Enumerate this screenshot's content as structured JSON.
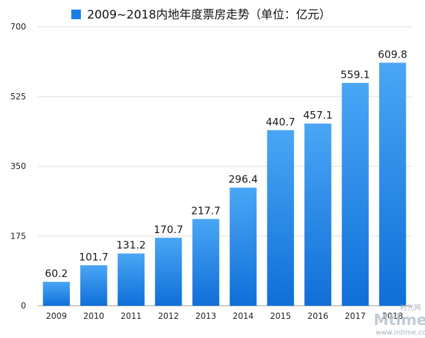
{
  "chart_data": {
    "type": "bar",
    "categories": [
      "2009",
      "2010",
      "2011",
      "2012",
      "2013",
      "2014",
      "2015",
      "2016",
      "2017",
      "2018"
    ],
    "series": [
      {
        "name": "2009~2018内地年度票房走势（单位：亿元）",
        "values": [
          60.2,
          101.7,
          131.2,
          170.7,
          217.7,
          296.4,
          440.7,
          457.1,
          559.1,
          609.8
        ],
        "value_labels": [
          "60.2",
          "101.7",
          "131.2",
          "170.7",
          "217.7",
          "296.4",
          "440.7",
          "457.1",
          "559.1",
          "609.8"
        ],
        "color_top": "#4aa6f5",
        "color_bottom": "#0f6fd8"
      }
    ],
    "yticks": [
      "0",
      "175",
      "350",
      "525",
      "700"
    ],
    "ylim": [
      0,
      700
    ],
    "grid": true,
    "legend_position": "top-center",
    "legend_color": "#1a7ee6"
  },
  "watermark": {
    "logo": "Mtime",
    "cn": "时光网",
    "url": "www.mtime.com"
  }
}
